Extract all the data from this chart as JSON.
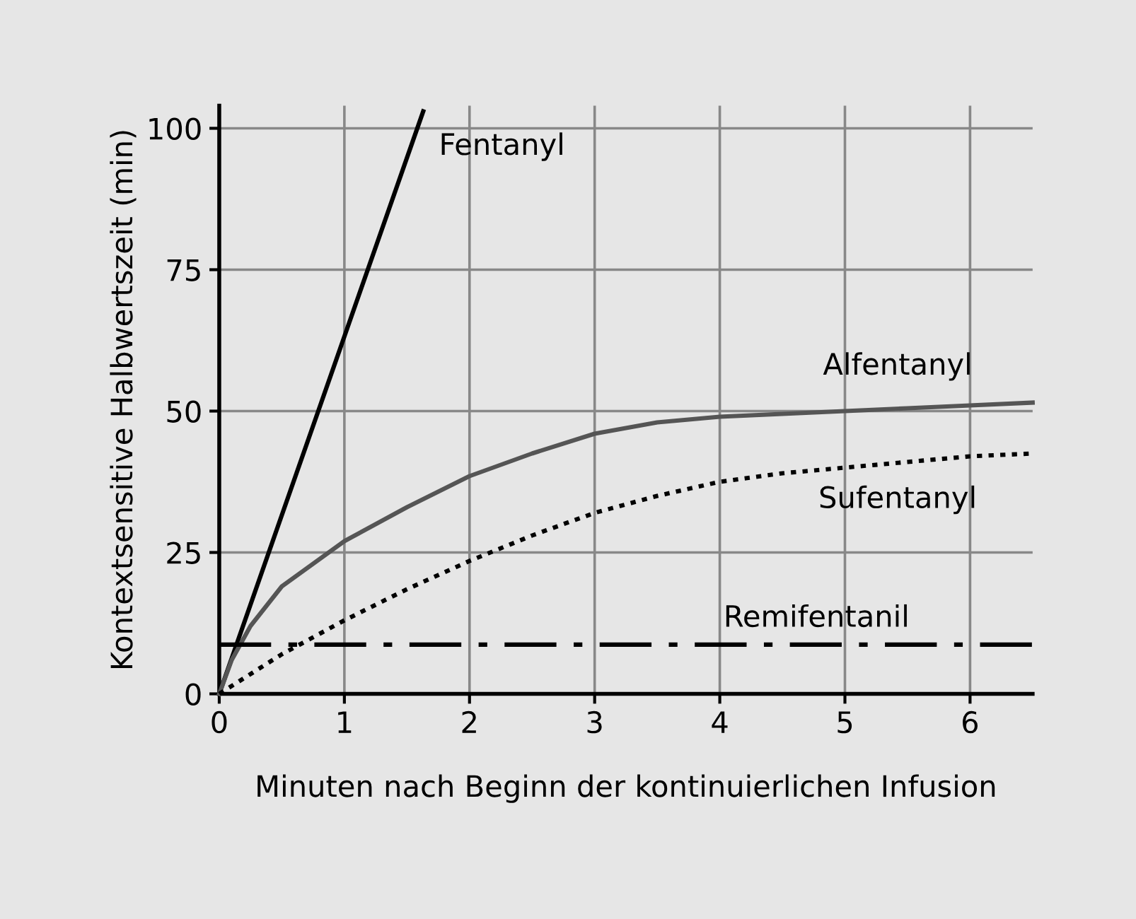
{
  "chart_data": {
    "type": "line",
    "xlabel": "Minuten nach Beginn der kontinuierlichen Infusion",
    "ylabel": "Kontextsensitive Halbwertszeit (min)",
    "xlim": [
      0,
      6.5
    ],
    "ylim": [
      0,
      104
    ],
    "xticks": [
      0,
      1,
      2,
      3,
      4,
      5,
      6
    ],
    "yticks": [
      0,
      25,
      50,
      75,
      100
    ],
    "grid": true,
    "legend": false,
    "marker": "none",
    "series": [
      {
        "name": "Fentanyl",
        "color": "#000000",
        "line_style": "solid",
        "x": [
          0,
          1.63
        ],
        "values": [
          0,
          103
        ]
      },
      {
        "name": "Alfentanyl",
        "color": "#555555",
        "line_style": "solid",
        "x": [
          0,
          0.1,
          0.25,
          0.5,
          1,
          1.5,
          2,
          2.5,
          3,
          3.5,
          4,
          4.5,
          5,
          5.5,
          6,
          6.5
        ],
        "values": [
          0,
          6,
          12,
          19,
          27,
          33,
          38.5,
          42.5,
          46,
          48,
          49,
          49.5,
          50,
          50.5,
          51,
          51.5
        ]
      },
      {
        "name": "Sufentanyl",
        "color": "#000000",
        "line_style": "dotted",
        "x": [
          0,
          0.5,
          1,
          1.5,
          2,
          2.5,
          3,
          3.5,
          4,
          4.5,
          5,
          5.5,
          6,
          6.5
        ],
        "values": [
          0,
          7,
          13,
          18.5,
          23.5,
          28,
          32,
          35,
          37.5,
          39,
          40,
          41,
          42,
          42.5
        ]
      },
      {
        "name": "Remifentanil",
        "color": "#000000",
        "line_style": "dashed",
        "x": [
          0,
          6.5
        ],
        "values": [
          8.7,
          8.7
        ]
      }
    ]
  }
}
